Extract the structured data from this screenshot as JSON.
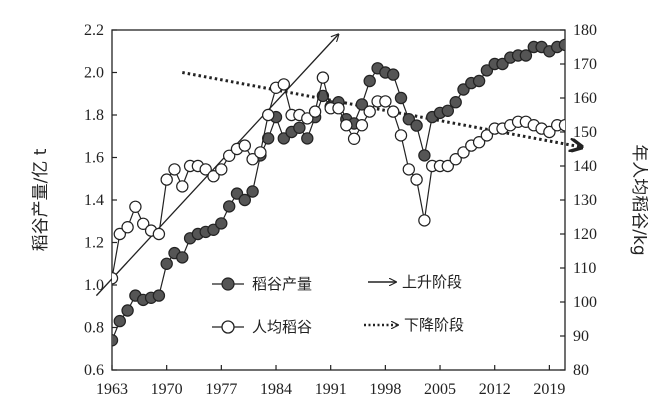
{
  "chart_data": {
    "type": "line",
    "xlabel": "",
    "ylabel": "稻谷产量/亿 t",
    "y2label": "年人均稻谷/kg",
    "x_ticks": [
      "1963",
      "1970",
      "1977",
      "1984",
      "1991",
      "1998",
      "2005",
      "2012",
      "2019"
    ],
    "y_ticks": [
      "0.6",
      "0.8",
      "1.0",
      "1.2",
      "1.4",
      "1.6",
      "1.8",
      "2.0",
      "2.2"
    ],
    "y2_ticks": [
      "80",
      "90",
      "100",
      "110",
      "120",
      "130",
      "140",
      "150",
      "160",
      "170",
      "180"
    ],
    "xlim": [
      1963,
      2021
    ],
    "ylim": [
      0.6,
      2.2
    ],
    "y2lim": [
      80,
      180
    ],
    "grid": false,
    "legend_position": "bottom-center",
    "series": [
      {
        "name": "稻谷产量",
        "axis": "left",
        "marker": "filled-circle",
        "color": "#555555",
        "x": [
          1963,
          1964,
          1965,
          1966,
          1967,
          1968,
          1969,
          1970,
          1971,
          1972,
          1973,
          1974,
          1975,
          1976,
          1977,
          1978,
          1979,
          1980,
          1981,
          1982,
          1983,
          1984,
          1985,
          1986,
          1987,
          1988,
          1989,
          1990,
          1991,
          1992,
          1993,
          1994,
          1995,
          1996,
          1997,
          1998,
          1999,
          2000,
          2001,
          2002,
          2003,
          2004,
          2005,
          2006,
          2007,
          2008,
          2009,
          2010,
          2011,
          2012,
          2013,
          2014,
          2015,
          2016,
          2017,
          2018,
          2019,
          2020,
          2021
        ],
        "y": [
          0.74,
          0.83,
          0.88,
          0.95,
          0.93,
          0.94,
          0.95,
          1.1,
          1.15,
          1.13,
          1.22,
          1.24,
          1.25,
          1.26,
          1.29,
          1.37,
          1.43,
          1.4,
          1.44,
          1.61,
          1.69,
          1.79,
          1.69,
          1.72,
          1.74,
          1.69,
          1.79,
          1.89,
          1.84,
          1.86,
          1.78,
          1.76,
          1.85,
          1.96,
          2.02,
          2.0,
          1.99,
          1.88,
          1.78,
          1.75,
          1.61,
          1.79,
          1.81,
          1.82,
          1.86,
          1.92,
          1.95,
          1.96,
          2.01,
          2.04,
          2.04,
          2.07,
          2.08,
          2.08,
          2.12,
          2.12,
          2.1,
          2.12,
          2.13
        ]
      },
      {
        "name": "人均稻谷",
        "axis": "right",
        "marker": "open-circle",
        "color": "#222222",
        "x": [
          1963,
          1964,
          1965,
          1966,
          1967,
          1968,
          1969,
          1970,
          1971,
          1972,
          1973,
          1974,
          1975,
          1976,
          1977,
          1978,
          1979,
          1980,
          1981,
          1982,
          1983,
          1984,
          1985,
          1986,
          1987,
          1988,
          1989,
          1990,
          1991,
          1992,
          1993,
          1994,
          1995,
          1996,
          1997,
          1998,
          1999,
          2000,
          2001,
          2002,
          2003,
          2004,
          2005,
          2006,
          2007,
          2008,
          2009,
          2010,
          2011,
          2012,
          2013,
          2014,
          2015,
          2016,
          2017,
          2018,
          2019,
          2020,
          2021
        ],
        "y": [
          107,
          120,
          122,
          128,
          123,
          121,
          120,
          136,
          139,
          134,
          140,
          140,
          139,
          137,
          139,
          143,
          145,
          146,
          142,
          144,
          155,
          163,
          164,
          155,
          155,
          154,
          156,
          166,
          157,
          157,
          152,
          148,
          152,
          156,
          159,
          159,
          156,
          149,
          139,
          136,
          124,
          140,
          140,
          140,
          142,
          144,
          146,
          147,
          149,
          151,
          151,
          152,
          153,
          153,
          152,
          151,
          150,
          152,
          152
        ]
      }
    ],
    "trend_lines": [
      {
        "name": "上升阶段",
        "style": "solid-arrow",
        "from": [
          1961,
          0.95
        ],
        "to": [
          1992,
          2.18
        ]
      },
      {
        "name": "下降阶段",
        "style": "dotted-arrow",
        "from": [
          1972,
          2.0
        ],
        "to": [
          2023,
          1.65
        ]
      }
    ],
    "legend": [
      {
        "label": "稻谷产量",
        "symbol": "filled-circle"
      },
      {
        "label": "上升阶段",
        "symbol": "solid-arrow"
      },
      {
        "label": "人均稻谷",
        "symbol": "open-circle"
      },
      {
        "label": "下降阶段",
        "symbol": "dotted-arrow"
      }
    ]
  }
}
